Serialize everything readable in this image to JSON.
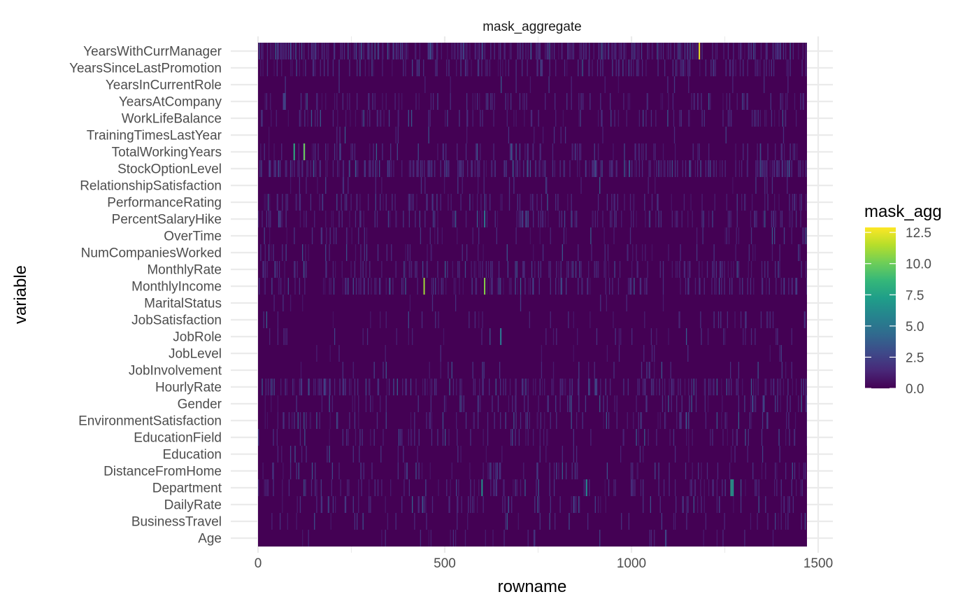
{
  "chart_data": {
    "type": "heatmap",
    "facet_title": "mask_aggregate",
    "xlabel": "rowname",
    "ylabel": "variable",
    "x_ticks": [
      "0",
      "500",
      "1000",
      "1500"
    ],
    "xlim": [
      0,
      1470
    ],
    "categories_bottom_to_top": [
      "Age",
      "BusinessTravel",
      "DailyRate",
      "Department",
      "DistanceFromHome",
      "Education",
      "EducationField",
      "EnvironmentSatisfaction",
      "Gender",
      "HourlyRate",
      "JobInvolvement",
      "JobLevel",
      "JobRole",
      "JobSatisfaction",
      "MaritalStatus",
      "MonthlyIncome",
      "MonthlyRate",
      "NumCompaniesWorked",
      "OverTime",
      "PercentSalaryHike",
      "PerformanceRating",
      "RelationshipSatisfaction",
      "StockOptionLevel",
      "TotalWorkingYears",
      "TrainingTimesLastYear",
      "WorkLifeBalance",
      "YearsAtCompany",
      "YearsInCurrentRole",
      "YearsSinceLastPromotion",
      "YearsWithCurrManager"
    ],
    "row_density": {
      "Age": 0.03,
      "BusinessTravel": 0.06,
      "DailyRate": 0.12,
      "Department": 0.12,
      "DistanceFromHome": 0.1,
      "Education": 0.05,
      "EducationField": 0.1,
      "EnvironmentSatisfaction": 0.12,
      "Gender": 0.12,
      "HourlyRate": 0.22,
      "JobInvolvement": 0.05,
      "JobLevel": 0.03,
      "JobRole": 0.05,
      "JobSatisfaction": 0.06,
      "MaritalStatus": 0.02,
      "MonthlyIncome": 0.2,
      "MonthlyRate": 0.15,
      "NumCompaniesWorked": 0.08,
      "OverTime": 0.08,
      "PercentSalaryHike": 0.15,
      "PerformanceRating": 0.15,
      "RelationshipSatisfaction": 0.05,
      "StockOptionLevel": 0.32,
      "TotalWorkingYears": 0.12,
      "TrainingTimesLastYear": 0.03,
      "WorkLifeBalance": 0.12,
      "YearsAtCompany": 0.12,
      "YearsInCurrentRole": 0.03,
      "YearsSinceLastPromotion": 0.2,
      "YearsWithCurrManager": 0.3
    },
    "highlights": [
      {
        "variable": "YearsWithCurrManager",
        "x": 1180,
        "value": 12.5
      },
      {
        "variable": "MonthlyIncome",
        "x": 443,
        "value": 11.0
      },
      {
        "variable": "MonthlyIncome",
        "x": 605,
        "value": 10.5
      },
      {
        "variable": "TotalWorkingYears",
        "x": 122,
        "value": 10.0
      },
      {
        "variable": "TotalWorkingYears",
        "x": 95,
        "value": 8.0
      },
      {
        "variable": "Department",
        "x": 1265,
        "value": 7.5
      },
      {
        "variable": "Department",
        "x": 1270,
        "value": 7.0
      },
      {
        "variable": "Department",
        "x": 598,
        "value": 6.5
      },
      {
        "variable": "Department",
        "x": 878,
        "value": 6.0
      },
      {
        "variable": "JobRole",
        "x": 648,
        "value": 5.0
      },
      {
        "variable": "PercentSalaryHike",
        "x": 605,
        "value": 5.0
      }
    ],
    "legend": {
      "title": "mask_agg",
      "ticks": [
        "0.0",
        "2.5",
        "5.0",
        "7.5",
        "10.0",
        "12.5"
      ],
      "range": [
        0,
        12.9
      ],
      "colormap": "viridis",
      "colors": [
        "#440154",
        "#482878",
        "#3e4989",
        "#31688e",
        "#26828e",
        "#1f9e89",
        "#35b779",
        "#6ece58",
        "#b5de2b",
        "#fde725"
      ]
    },
    "grid": true
  }
}
